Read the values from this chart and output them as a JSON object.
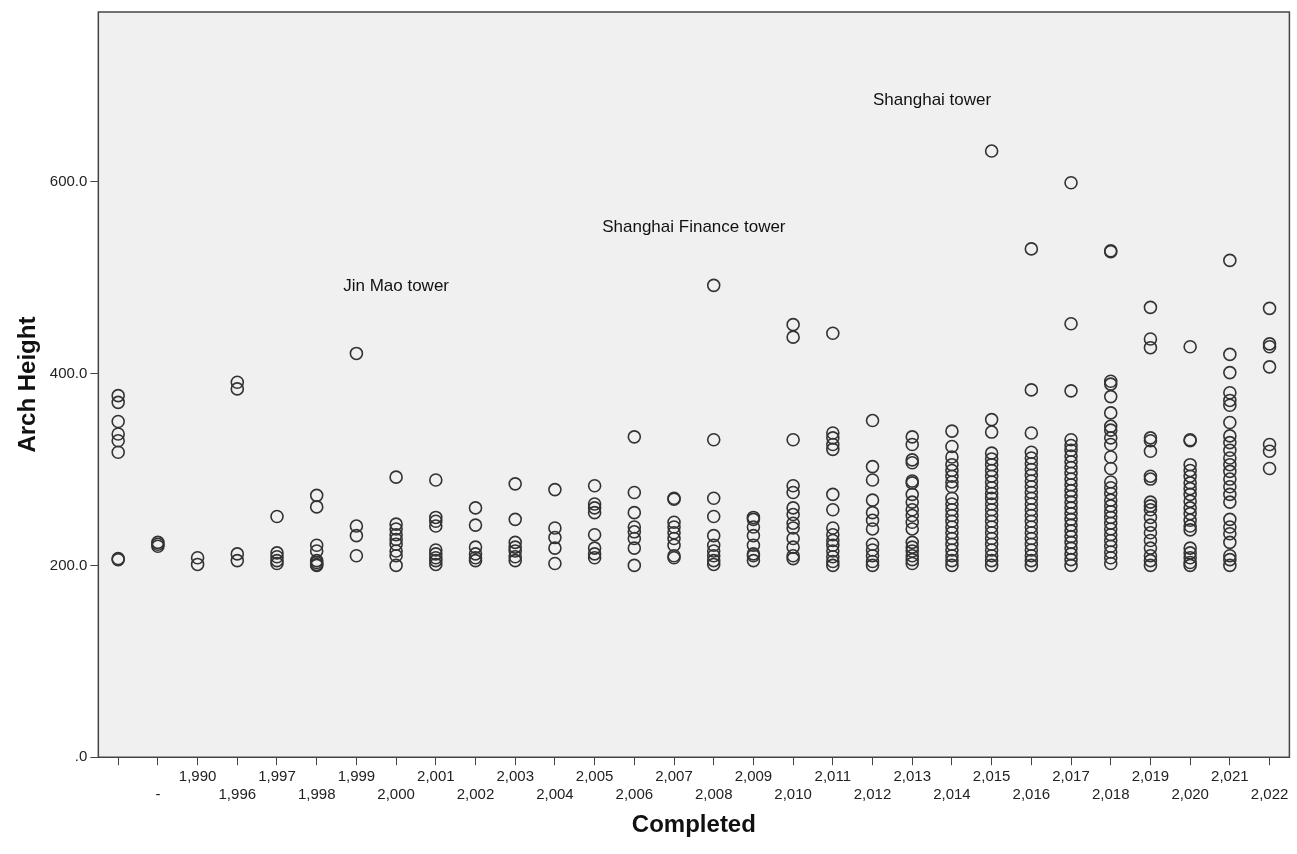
{
  "chart_data": {
    "type": "scatter",
    "xlabel": "Completed",
    "ylabel": "Arch Height",
    "marker": "circle",
    "categories": [
      null,
      "-",
      "1,990",
      "1,996",
      "1,997",
      "1,998",
      "1,999",
      "2,000",
      "2,001",
      "2,002",
      "2,003",
      "2,004",
      "2,005",
      "2,006",
      "2,007",
      "2,008",
      "2,009",
      "2,010",
      "2,011",
      "2,012",
      "2,013",
      "2,014",
      "2,015",
      "2,016",
      "2,017",
      "2,018",
      "2,019",
      "2,020",
      "2,021",
      "2,022"
    ],
    "series": [
      {
        "color": "#333333",
        "values": [
          377,
          224,
          208,
          391,
          251,
          273,
          421,
          292,
          289,
          260,
          285,
          279,
          283,
          334,
          270,
          492,
          250,
          451,
          442,
          351,
          334,
          340,
          632,
          530,
          599,
          528,
          469,
          428,
          518,
          468
        ]
      },
      {
        "color": "#333333",
        "values": [
          370,
          222,
          201,
          384,
          213,
          261,
          241,
          243,
          250,
          242,
          248,
          239,
          264,
          276,
          269,
          331,
          248,
          438,
          338,
          303,
          326,
          324,
          352,
          383,
          452,
          527,
          436,
          331,
          420,
          431
        ]
      },
      {
        "color": "#333333",
        "values": [
          350,
          220,
          null,
          212,
          209,
          221,
          231,
          238,
          246,
          219,
          224,
          229,
          260,
          255,
          245,
          270,
          240,
          331,
          333,
          289,
          310,
          313,
          339,
          338,
          382,
          392,
          427,
          330,
          401,
          428
        ]
      },
      {
        "color": "#333333",
        "values": [
          337,
          null,
          null,
          205,
          205,
          215,
          210,
          232,
          241,
          212,
          219,
          218,
          255,
          240,
          240,
          251,
          231,
          283,
          326,
          268,
          307,
          305,
          317,
          318,
          331,
          389,
          333,
          305,
          380,
          407
        ]
      },
      {
        "color": "#333333",
        "values": [
          330,
          null,
          null,
          null,
          202,
          205,
          null,
          227,
          216,
          208,
          215,
          202,
          232,
          235,
          234,
          231,
          221,
          276,
          321,
          255,
          288,
          299,
          311,
          312,
          325,
          376,
          330,
          299,
          372,
          326
        ]
      },
      {
        "color": "#333333",
        "values": [
          318,
          null,
          null,
          null,
          null,
          203,
          null,
          222,
          212,
          205,
          209,
          null,
          218,
          228,
          228,
          221,
          212,
          260,
          274,
          247,
          286,
          293,
          305,
          306,
          320,
          359,
          319,
          293,
          367,
          319
        ]
      },
      {
        "color": "#333333",
        "values": [
          207,
          null,
          null,
          null,
          null,
          201,
          null,
          215,
          208,
          null,
          205,
          null,
          212,
          218,
          221,
          215,
          210,
          253,
          258,
          238,
          274,
          287,
          299,
          300,
          314,
          345,
          293,
          286,
          349,
          301
        ]
      },
      {
        "color": "#333333",
        "values": [
          206,
          null,
          null,
          null,
          null,
          200,
          null,
          210,
          205,
          null,
          null,
          null,
          208,
          200,
          210,
          210,
          205,
          244,
          239,
          222,
          266,
          282,
          293,
          294,
          308,
          341,
          290,
          280,
          335,
          null
        ]
      },
      {
        "color": "#333333",
        "values": [
          null,
          null,
          null,
          null,
          null,
          null,
          null,
          200,
          201,
          null,
          null,
          null,
          null,
          null,
          208,
          205,
          null,
          239,
          232,
          216,
          258,
          270,
          287,
          288,
          302,
          333,
          266,
          274,
          328,
          null
        ]
      },
      {
        "color": "#333333",
        "values": [
          null,
          null,
          null,
          null,
          null,
          null,
          null,
          null,
          null,
          null,
          null,
          null,
          null,
          null,
          null,
          201,
          null,
          228,
          226,
          210,
          252,
          264,
          281,
          282,
          296,
          326,
          262,
          267,
          320,
          null
        ]
      },
      {
        "color": "#333333",
        "values": [
          null,
          null,
          null,
          null,
          null,
          null,
          null,
          null,
          null,
          null,
          null,
          null,
          null,
          null,
          null,
          null,
          null,
          219,
          221,
          204,
          245,
          258,
          275,
          276,
          290,
          313,
          258,
          260,
          312,
          null
        ]
      },
      {
        "color": "#333333",
        "values": [
          null,
          null,
          null,
          null,
          null,
          null,
          null,
          null,
          null,
          null,
          null,
          null,
          null,
          null,
          null,
          null,
          null,
          210,
          215,
          200,
          238,
          252,
          270,
          270,
          284,
          301,
          250,
          254,
          305,
          null
        ]
      },
      {
        "color": "#333333",
        "values": [
          null,
          null,
          null,
          null,
          null,
          null,
          null,
          null,
          null,
          null,
          null,
          null,
          null,
          null,
          null,
          null,
          null,
          207,
          209,
          null,
          224,
          246,
          264,
          264,
          278,
          287,
          242,
          247,
          298,
          null
        ]
      },
      {
        "color": "#333333",
        "values": [
          null,
          null,
          null,
          null,
          null,
          null,
          null,
          null,
          null,
          null,
          null,
          null,
          null,
          null,
          null,
          null,
          null,
          null,
          204,
          null,
          219,
          240,
          258,
          258,
          272,
          281,
          234,
          241,
          290,
          null
        ]
      },
      {
        "color": "#333333",
        "values": [
          null,
          null,
          null,
          null,
          null,
          null,
          null,
          null,
          null,
          null,
          null,
          null,
          null,
          null,
          null,
          null,
          null,
          null,
          200,
          null,
          215,
          234,
          252,
          252,
          266,
          275,
          226,
          237,
          282,
          null
        ]
      },
      {
        "color": "#333333",
        "values": [
          null,
          null,
          null,
          null,
          null,
          null,
          null,
          null,
          null,
          null,
          null,
          null,
          null,
          null,
          null,
          null,
          null,
          null,
          null,
          null,
          210,
          228,
          246,
          246,
          260,
          268,
          218,
          218,
          274,
          null
        ]
      },
      {
        "color": "#333333",
        "values": [
          null,
          null,
          null,
          null,
          null,
          null,
          null,
          null,
          null,
          null,
          null,
          null,
          null,
          null,
          null,
          null,
          null,
          null,
          null,
          null,
          206,
          222,
          240,
          240,
          254,
          262,
          210,
          213,
          266,
          null
        ]
      },
      {
        "color": "#333333",
        "values": [
          null,
          null,
          null,
          null,
          null,
          null,
          null,
          null,
          null,
          null,
          null,
          null,
          null,
          null,
          null,
          null,
          null,
          null,
          null,
          null,
          202,
          216,
          234,
          234,
          248,
          256,
          205,
          208,
          248,
          null
        ]
      },
      {
        "color": "#333333",
        "values": [
          null,
          null,
          null,
          null,
          null,
          null,
          null,
          null,
          null,
          null,
          null,
          null,
          null,
          null,
          null,
          null,
          null,
          null,
          null,
          null,
          null,
          210,
          228,
          228,
          242,
          250,
          200,
          203,
          240,
          null
        ]
      },
      {
        "color": "#333333",
        "values": [
          null,
          null,
          null,
          null,
          null,
          null,
          null,
          null,
          null,
          null,
          null,
          null,
          null,
          null,
          null,
          null,
          null,
          null,
          null,
          null,
          null,
          205,
          222,
          222,
          236,
          244,
          null,
          200,
          233,
          null
        ]
      },
      {
        "color": "#333333",
        "values": [
          null,
          null,
          null,
          null,
          null,
          null,
          null,
          null,
          null,
          null,
          null,
          null,
          null,
          null,
          null,
          null,
          null,
          null,
          null,
          null,
          null,
          200,
          216,
          216,
          230,
          238,
          null,
          null,
          224,
          null
        ]
      },
      {
        "color": "#333333",
        "values": [
          null,
          null,
          null,
          null,
          null,
          null,
          null,
          null,
          null,
          null,
          null,
          null,
          null,
          null,
          null,
          null,
          null,
          null,
          null,
          null,
          null,
          null,
          210,
          210,
          224,
          232,
          null,
          null,
          210,
          null
        ]
      },
      {
        "color": "#333333",
        "values": [
          null,
          null,
          null,
          null,
          null,
          null,
          null,
          null,
          null,
          null,
          null,
          null,
          null,
          null,
          null,
          null,
          null,
          null,
          null,
          null,
          null,
          null,
          205,
          205,
          218,
          226,
          null,
          null,
          206,
          null
        ]
      },
      {
        "color": "#333333",
        "values": [
          null,
          null,
          null,
          null,
          null,
          null,
          null,
          null,
          null,
          null,
          null,
          null,
          null,
          null,
          null,
          null,
          null,
          null,
          null,
          null,
          null,
          null,
          200,
          200,
          212,
          220,
          null,
          null,
          200,
          null
        ]
      },
      {
        "color": "#333333",
        "values": [
          null,
          null,
          null,
          null,
          null,
          null,
          null,
          null,
          null,
          null,
          null,
          null,
          null,
          null,
          null,
          null,
          null,
          null,
          null,
          null,
          null,
          null,
          null,
          null,
          206,
          214,
          null,
          null,
          null,
          null
        ]
      },
      {
        "color": "#333333",
        "values": [
          null,
          null,
          null,
          null,
          null,
          null,
          null,
          null,
          null,
          null,
          null,
          null,
          null,
          null,
          null,
          null,
          null,
          null,
          null,
          null,
          null,
          null,
          null,
          null,
          200,
          208,
          null,
          null,
          null,
          null
        ]
      },
      {
        "color": "#333333",
        "values": [
          null,
          null,
          null,
          null,
          null,
          null,
          null,
          null,
          null,
          null,
          null,
          null,
          null,
          null,
          null,
          null,
          null,
          null,
          null,
          null,
          null,
          null,
          null,
          null,
          null,
          202,
          null,
          null,
          null,
          null
        ]
      }
    ],
    "ylim": [
      0,
      777
    ],
    "yticks": [
      {
        "value": 0,
        "label": ".0"
      },
      {
        "value": 200,
        "label": "200.0"
      },
      {
        "value": 400,
        "label": "400.0"
      },
      {
        "value": 600,
        "label": "600.0"
      }
    ],
    "annotations": [
      "Jin Mao tower",
      "Shanghai Finance tower",
      "Shanghai tower"
    ]
  }
}
